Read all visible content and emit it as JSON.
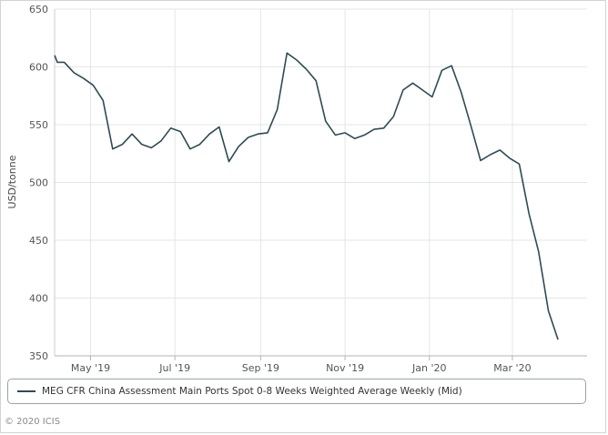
{
  "chart_data": {
    "type": "line",
    "title": "",
    "xlabel": "",
    "ylabel": "USD/tonne",
    "ylim": [
      350,
      650
    ],
    "yticks": [
      350,
      400,
      450,
      500,
      550,
      600,
      650
    ],
    "xtick_labels": [
      {
        "label": "May '19",
        "date": "2019-05-01"
      },
      {
        "label": "Jul '19",
        "date": "2019-07-01"
      },
      {
        "label": "Sep '19",
        "date": "2019-09-01"
      },
      {
        "label": "Nov '19",
        "date": "2019-11-01"
      },
      {
        "label": "Jan '20",
        "date": "2020-01-01"
      },
      {
        "label": "Mar '20",
        "date": "2020-03-01"
      }
    ],
    "x_range": [
      "2019-04-05",
      "2020-04-24"
    ],
    "grid": {
      "vertical": true,
      "horizontal": true
    },
    "legend_position": "bottom",
    "series": [
      {
        "name": "MEG CFR China Assessment Main Ports Spot 0-8 Weeks Weighted Average Weekly (Mid)",
        "color": "#2e4b55",
        "x": [
          "2019-04-05",
          "2019-04-07",
          "2019-04-12",
          "2019-04-19",
          "2019-04-26",
          "2019-05-03",
          "2019-05-10",
          "2019-05-17",
          "2019-05-24",
          "2019-05-31",
          "2019-06-07",
          "2019-06-14",
          "2019-06-21",
          "2019-06-28",
          "2019-07-05",
          "2019-07-12",
          "2019-07-19",
          "2019-07-26",
          "2019-08-02",
          "2019-08-09",
          "2019-08-16",
          "2019-08-23",
          "2019-08-30",
          "2019-09-06",
          "2019-09-13",
          "2019-09-20",
          "2019-09-27",
          "2019-10-04",
          "2019-10-11",
          "2019-10-18",
          "2019-10-25",
          "2019-11-01",
          "2019-11-08",
          "2019-11-15",
          "2019-11-22",
          "2019-11-29",
          "2019-12-06",
          "2019-12-13",
          "2019-12-20",
          "2019-12-27",
          "2020-01-03",
          "2020-01-10",
          "2020-01-17",
          "2020-01-24",
          "2020-01-31",
          "2020-02-07",
          "2020-02-14",
          "2020-02-21",
          "2020-02-28",
          "2020-03-06",
          "2020-03-13",
          "2020-03-20",
          "2020-03-27",
          "2020-04-03"
        ],
        "values": [
          610,
          604,
          604,
          595,
          590,
          584,
          571,
          529,
          533,
          542,
          533,
          530,
          536,
          547,
          544,
          529,
          533,
          542,
          548,
          518,
          531,
          539,
          542,
          543,
          563,
          612,
          606,
          598,
          588,
          553,
          541,
          543,
          538,
          541,
          546,
          547,
          557,
          580,
          586,
          580,
          574,
          597,
          601,
          578,
          549,
          519,
          524,
          528,
          521,
          516,
          473,
          440,
          389,
          364
        ]
      }
    ]
  },
  "copyright": "© 2020 ICIS"
}
